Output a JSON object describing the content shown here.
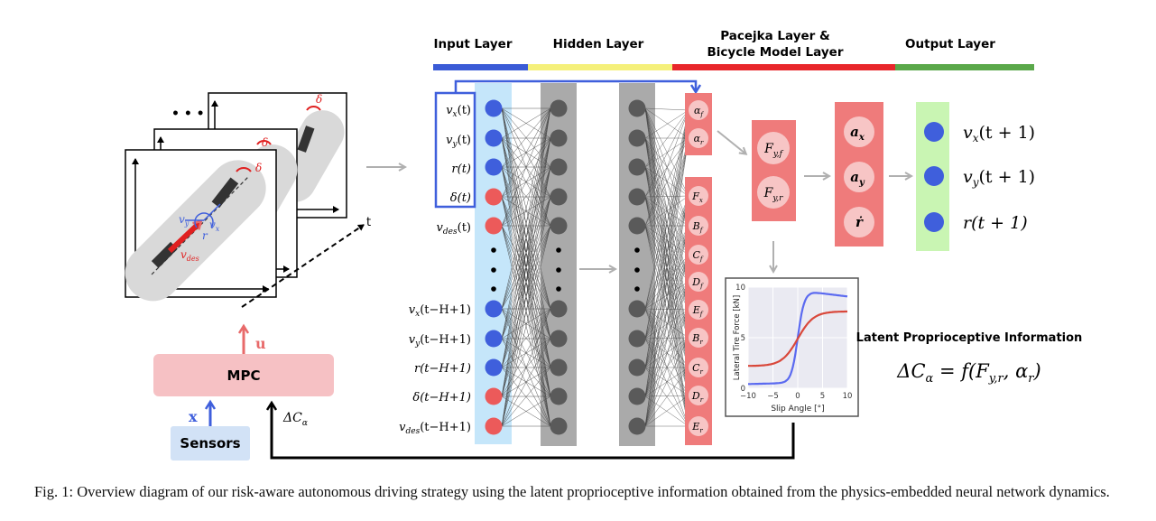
{
  "layers": {
    "input": "Input Layer",
    "hidden": "Hidden Layer",
    "pacejka_line1": "Pacejka Layer &",
    "pacejka_line2": "Bicycle Model Layer",
    "output": "Output Layer"
  },
  "colors": {
    "input": "#3a5bd6",
    "hidden": "#f5f07a",
    "pacejka": "#e8262b",
    "output": "#5aa84a",
    "blue_node": "#3f5fdc",
    "red_node": "#ec5a5a",
    "gray_node": "#5a5a5a",
    "pink_box": "#ef7b7b",
    "green_box": "#c9f5b3",
    "light_blue_box": "#c5e6fa"
  },
  "inputs": {
    "vx": "v",
    "vx_sub": "x",
    "vx_arg": "(t)",
    "vy": "v",
    "vy_sub": "y",
    "vy_arg": "(t)",
    "r": "r(t)",
    "delta": "δ(t)",
    "vdes": "v",
    "vdes_sub": "des",
    "vdes_arg": "(t)",
    "vx_h": "v",
    "vx_h_sub": "x",
    "vx_h_arg": "(t−H+1)",
    "vy_h": "v",
    "vy_h_sub": "y",
    "vy_h_arg": "(t−H+1)",
    "r_h": "r(t−H+1)",
    "delta_h": "δ(t−H+1)",
    "vdes_h": "v",
    "vdes_h_sub": "des",
    "vdes_h_arg": "(t−H+1)"
  },
  "pacejka_nodes": {
    "alpha_f": "α",
    "alpha_f_sub": "f",
    "alpha_r": "α",
    "alpha_r_sub": "r",
    "params": [
      {
        "base": "F",
        "sub": "x"
      },
      {
        "base": "B",
        "sub": "f"
      },
      {
        "base": "C",
        "sub": "f"
      },
      {
        "base": "D",
        "sub": "f"
      },
      {
        "base": "E",
        "sub": "f"
      },
      {
        "base": "B",
        "sub": "r"
      },
      {
        "base": "C",
        "sub": "r"
      },
      {
        "base": "D",
        "sub": "r"
      },
      {
        "base": "E",
        "sub": "r"
      }
    ]
  },
  "forces": {
    "fyf": "F",
    "fyf_sub": "y,f",
    "fyr": "F",
    "fyr_sub": "y,r"
  },
  "accel": {
    "ax": "a",
    "ax_sub": "x",
    "ay": "a",
    "ay_sub": "y",
    "rdot": "ṙ"
  },
  "outputs": {
    "vx": "v",
    "vx_sub": "x",
    "vx_arg": "(t + 1)",
    "vy": "v",
    "vy_sub": "y",
    "vy_arg": "(t + 1)",
    "r": "r(t + 1)"
  },
  "plot": {
    "ylabel": "Lateral Tire Force [kN]",
    "xlabel": "Slip Angle [°]",
    "yticks": [
      "10",
      "5",
      "0"
    ],
    "xticks": [
      "−10",
      "−5",
      "0",
      "5",
      "10"
    ],
    "xlim": [
      -10,
      10
    ],
    "ylim": [
      0,
      10
    ]
  },
  "latent": {
    "title": "Latent Proprioceptive Information",
    "eq_lhs": "ΔC",
    "eq_lhs_sub": "α",
    "eq_mid": " = f(F",
    "eq_mid_sub": "y,r",
    "eq_mid2": ", α",
    "eq_mid2_sub": "r",
    "eq_end": ")"
  },
  "controller": {
    "mpc": "MPC",
    "sensors": "Sensors",
    "u": "u",
    "x": "x",
    "dc": "ΔC",
    "dc_sub": "α"
  },
  "scene": {
    "t_label": "t",
    "dots": "• • •",
    "vy": "v",
    "vy_sub": "y",
    "vx": "v",
    "vx_sub": "x",
    "r": "r",
    "delta": "δ",
    "vdes": "v",
    "vdes_sub": "des"
  },
  "caption": "Fig. 1: Overview diagram of our risk-aware autonomous driving strategy using the latent proprioceptive information obtained from the physics-embedded neural network dynamics."
}
